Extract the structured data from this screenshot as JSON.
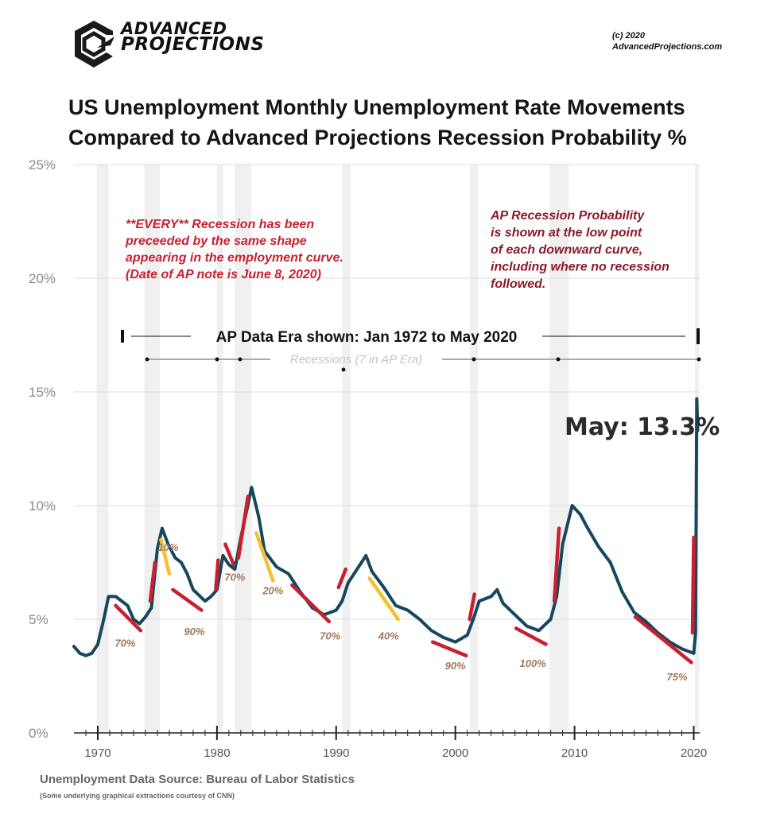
{
  "branding": {
    "logo_line1": "ADVANCED",
    "logo_line2": "PROJECTIONS",
    "copyright_line1": "(c) 2020",
    "copyright_line2": "AdvancedProjections.com"
  },
  "title_line1": "US Unemployment Monthly Unemployment Rate Movements",
  "title_line2": "Compared to Advanced Projections Recession Probability %",
  "footer": {
    "source": "Unemployment Data Source: Bureau of Labor Statistics",
    "credit": "(Some underlying graphical extractions courtesy of CNN)"
  },
  "colors": {
    "series": "#16475d",
    "warning_red": "#c8202f",
    "yellow": "#f2c12e",
    "recession_band": "#f0f0f0"
  },
  "chart_data": {
    "type": "line",
    "x_range": [
      1968,
      2020.5
    ],
    "ylim": [
      0,
      25
    ],
    "y_ticks": [
      0,
      5,
      10,
      15,
      20,
      25
    ],
    "y_tick_labels": [
      "0%",
      "5%",
      "10%",
      "15%",
      "20%",
      "25%"
    ],
    "x_ticks": [
      1970,
      1980,
      1990,
      2000,
      2010,
      2020
    ],
    "x_tick_labels": [
      "1970",
      "1980",
      "1990",
      "2000",
      "2010",
      "2020"
    ],
    "grid": true,
    "series": [
      {
        "name": "",
        "points": [
          [
            1968.0,
            3.8
          ],
          [
            1968.5,
            3.5
          ],
          [
            1969.0,
            3.4
          ],
          [
            1969.5,
            3.5
          ],
          [
            1970.0,
            3.9
          ],
          [
            1970.5,
            5.0
          ],
          [
            1970.9,
            6.0
          ],
          [
            1971.5,
            6.0
          ],
          [
            1972.0,
            5.8
          ],
          [
            1972.5,
            5.6
          ],
          [
            1973.0,
            5.0
          ],
          [
            1973.5,
            4.8
          ],
          [
            1974.0,
            5.1
          ],
          [
            1974.5,
            5.5
          ],
          [
            1975.0,
            8.1
          ],
          [
            1975.4,
            9.0
          ],
          [
            1975.9,
            8.3
          ],
          [
            1976.5,
            7.7
          ],
          [
            1977.0,
            7.5
          ],
          [
            1977.5,
            7.0
          ],
          [
            1978.0,
            6.3
          ],
          [
            1979.0,
            5.8
          ],
          [
            1979.5,
            6.0
          ],
          [
            1980.0,
            6.3
          ],
          [
            1980.5,
            7.8
          ],
          [
            1981.0,
            7.4
          ],
          [
            1981.5,
            7.2
          ],
          [
            1982.0,
            8.6
          ],
          [
            1982.5,
            9.8
          ],
          [
            1982.9,
            10.8
          ],
          [
            1983.5,
            9.5
          ],
          [
            1984.0,
            8.0
          ],
          [
            1985.0,
            7.3
          ],
          [
            1986.0,
            7.0
          ],
          [
            1987.0,
            6.2
          ],
          [
            1988.0,
            5.5
          ],
          [
            1989.0,
            5.2
          ],
          [
            1990.0,
            5.4
          ],
          [
            1990.5,
            5.8
          ],
          [
            1991.0,
            6.6
          ],
          [
            1992.0,
            7.4
          ],
          [
            1992.5,
            7.8
          ],
          [
            1993.0,
            7.1
          ],
          [
            1994.0,
            6.4
          ],
          [
            1995.0,
            5.6
          ],
          [
            1996.0,
            5.4
          ],
          [
            1997.0,
            5.0
          ],
          [
            1998.0,
            4.5
          ],
          [
            1999.0,
            4.2
          ],
          [
            2000.0,
            4.0
          ],
          [
            2001.0,
            4.3
          ],
          [
            2001.5,
            5.0
          ],
          [
            2002.0,
            5.8
          ],
          [
            2003.0,
            6.0
          ],
          [
            2003.5,
            6.3
          ],
          [
            2004.0,
            5.7
          ],
          [
            2005.0,
            5.2
          ],
          [
            2006.0,
            4.7
          ],
          [
            2007.0,
            4.5
          ],
          [
            2008.0,
            5.0
          ],
          [
            2008.5,
            6.0
          ],
          [
            2009.0,
            8.3
          ],
          [
            2009.8,
            10.0
          ],
          [
            2010.5,
            9.6
          ],
          [
            2011.0,
            9.1
          ],
          [
            2012.0,
            8.2
          ],
          [
            2013.0,
            7.5
          ],
          [
            2014.0,
            6.2
          ],
          [
            2015.0,
            5.3
          ],
          [
            2016.0,
            4.9
          ],
          [
            2017.0,
            4.4
          ],
          [
            2018.0,
            4.0
          ],
          [
            2019.0,
            3.7
          ],
          [
            2020.0,
            3.5
          ],
          [
            2020.15,
            4.4
          ],
          [
            2020.25,
            14.7
          ],
          [
            2020.33,
            13.3
          ]
        ]
      }
    ],
    "recession_bands": [
      [
        1969.9,
        1970.9
      ],
      [
        1973.9,
        1975.2
      ],
      [
        1980.0,
        1980.5
      ],
      [
        1981.5,
        1982.9
      ],
      [
        1990.5,
        1991.2
      ],
      [
        2001.2,
        2001.9
      ],
      [
        2007.9,
        2009.5
      ],
      [
        2020.1,
        2020.45
      ]
    ],
    "red_warning_segments": [
      [
        [
          1971.5,
          5.6
        ],
        [
          1973.6,
          4.5
        ]
      ],
      [
        [
          1974.4,
          5.8
        ],
        [
          1974.8,
          7.5
        ]
      ],
      [
        [
          1976.3,
          6.3
        ],
        [
          1978.7,
          5.4
        ]
      ],
      [
        [
          1979.9,
          6.3
        ],
        [
          1980.1,
          7.6
        ]
      ],
      [
        [
          1980.7,
          8.3
        ],
        [
          1981.4,
          7.4
        ]
      ],
      [
        [
          1981.8,
          7.7
        ],
        [
          1982.6,
          10.4
        ]
      ],
      [
        [
          1986.3,
          6.5
        ],
        [
          1989.4,
          4.9
        ]
      ],
      [
        [
          1990.2,
          6.4
        ],
        [
          1990.8,
          7.2
        ]
      ],
      [
        [
          1998.1,
          4.0
        ],
        [
          2000.9,
          3.4
        ]
      ],
      [
        [
          2001.2,
          5.0
        ],
        [
          2001.6,
          6.1
        ]
      ],
      [
        [
          2005.1,
          4.6
        ],
        [
          2007.6,
          3.9
        ]
      ],
      [
        [
          2008.3,
          5.8
        ],
        [
          2008.7,
          9.0
        ]
      ],
      [
        [
          2015.1,
          5.1
        ],
        [
          2019.8,
          3.1
        ]
      ],
      [
        [
          2019.9,
          4.4
        ],
        [
          2020.0,
          8.6
        ]
      ]
    ],
    "yellow_segments": [
      [
        [
          1975.3,
          8.5
        ],
        [
          1976.0,
          7.0
        ]
      ],
      [
        [
          1983.3,
          8.8
        ],
        [
          1984.7,
          6.7
        ]
      ],
      [
        [
          1992.8,
          6.8
        ],
        [
          1995.2,
          5.0
        ]
      ]
    ],
    "annotations": {
      "left_note": [
        "**EVERY** Recession has been",
        "preceeded by the same shape",
        "appearing in the employment curve.",
        "(Date of AP note is June 8, 2020)"
      ],
      "right_note": [
        "AP Recession Probability",
        "is shown at the low point",
        "of each downward curve,",
        "including where no recession",
        "followed."
      ],
      "era_label": "AP Data Era shown: Jan 1972 to May 2020",
      "recession_label": "Recessions (7 in AP Era)",
      "may_label": "May: 13.3%",
      "probabilities": [
        {
          "text": "70%",
          "year": 1972.3,
          "rate": 3.8
        },
        {
          "text": "10%",
          "year": 1975.9,
          "rate": 8.0
        },
        {
          "text": "90%",
          "year": 1978.1,
          "rate": 4.3
        },
        {
          "text": "70%",
          "year": 1981.5,
          "rate": 6.7
        },
        {
          "text": "20%",
          "year": 1984.7,
          "rate": 6.1
        },
        {
          "text": "70%",
          "year": 1989.5,
          "rate": 4.1
        },
        {
          "text": "40%",
          "year": 1994.4,
          "rate": 4.1
        },
        {
          "text": "90%",
          "year": 2000.0,
          "rate": 2.8
        },
        {
          "text": "100%",
          "year": 2006.5,
          "rate": 2.9
        },
        {
          "text": "75%",
          "year": 2018.6,
          "rate": 2.3
        }
      ]
    }
  }
}
